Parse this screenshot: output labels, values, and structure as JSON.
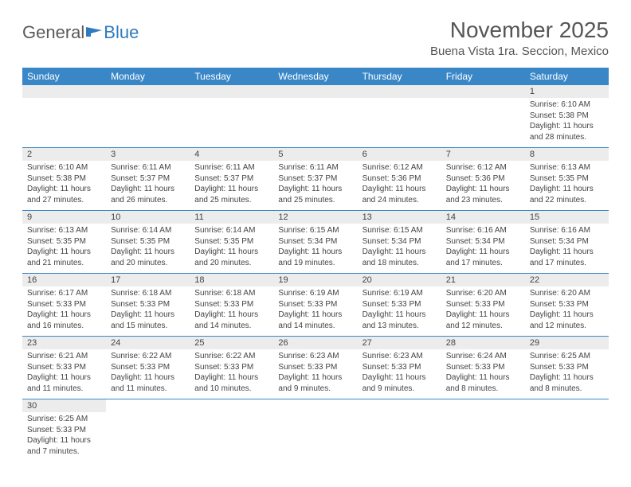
{
  "brand": {
    "part1": "General",
    "part2": "Blue"
  },
  "title": "November 2025",
  "location": "Buena Vista 1ra. Seccion, Mexico",
  "colors": {
    "header_bg": "#3a87c8",
    "header_fg": "#ffffff",
    "daynum_bg": "#ececec",
    "rule": "#3a87c8",
    "text": "#444444",
    "brand_gray": "#5a5a5a",
    "brand_blue": "#2f7bbf"
  },
  "dayHeaders": [
    "Sunday",
    "Monday",
    "Tuesday",
    "Wednesday",
    "Thursday",
    "Friday",
    "Saturday"
  ],
  "weeks": [
    [
      null,
      null,
      null,
      null,
      null,
      null,
      {
        "n": "1",
        "sunrise": "6:10 AM",
        "sunset": "5:38 PM",
        "dl": "11 hours and 28 minutes."
      }
    ],
    [
      {
        "n": "2",
        "sunrise": "6:10 AM",
        "sunset": "5:38 PM",
        "dl": "11 hours and 27 minutes."
      },
      {
        "n": "3",
        "sunrise": "6:11 AM",
        "sunset": "5:37 PM",
        "dl": "11 hours and 26 minutes."
      },
      {
        "n": "4",
        "sunrise": "6:11 AM",
        "sunset": "5:37 PM",
        "dl": "11 hours and 25 minutes."
      },
      {
        "n": "5",
        "sunrise": "6:11 AM",
        "sunset": "5:37 PM",
        "dl": "11 hours and 25 minutes."
      },
      {
        "n": "6",
        "sunrise": "6:12 AM",
        "sunset": "5:36 PM",
        "dl": "11 hours and 24 minutes."
      },
      {
        "n": "7",
        "sunrise": "6:12 AM",
        "sunset": "5:36 PM",
        "dl": "11 hours and 23 minutes."
      },
      {
        "n": "8",
        "sunrise": "6:13 AM",
        "sunset": "5:35 PM",
        "dl": "11 hours and 22 minutes."
      }
    ],
    [
      {
        "n": "9",
        "sunrise": "6:13 AM",
        "sunset": "5:35 PM",
        "dl": "11 hours and 21 minutes."
      },
      {
        "n": "10",
        "sunrise": "6:14 AM",
        "sunset": "5:35 PM",
        "dl": "11 hours and 20 minutes."
      },
      {
        "n": "11",
        "sunrise": "6:14 AM",
        "sunset": "5:35 PM",
        "dl": "11 hours and 20 minutes."
      },
      {
        "n": "12",
        "sunrise": "6:15 AM",
        "sunset": "5:34 PM",
        "dl": "11 hours and 19 minutes."
      },
      {
        "n": "13",
        "sunrise": "6:15 AM",
        "sunset": "5:34 PM",
        "dl": "11 hours and 18 minutes."
      },
      {
        "n": "14",
        "sunrise": "6:16 AM",
        "sunset": "5:34 PM",
        "dl": "11 hours and 17 minutes."
      },
      {
        "n": "15",
        "sunrise": "6:16 AM",
        "sunset": "5:34 PM",
        "dl": "11 hours and 17 minutes."
      }
    ],
    [
      {
        "n": "16",
        "sunrise": "6:17 AM",
        "sunset": "5:33 PM",
        "dl": "11 hours and 16 minutes."
      },
      {
        "n": "17",
        "sunrise": "6:18 AM",
        "sunset": "5:33 PM",
        "dl": "11 hours and 15 minutes."
      },
      {
        "n": "18",
        "sunrise": "6:18 AM",
        "sunset": "5:33 PM",
        "dl": "11 hours and 14 minutes."
      },
      {
        "n": "19",
        "sunrise": "6:19 AM",
        "sunset": "5:33 PM",
        "dl": "11 hours and 14 minutes."
      },
      {
        "n": "20",
        "sunrise": "6:19 AM",
        "sunset": "5:33 PM",
        "dl": "11 hours and 13 minutes."
      },
      {
        "n": "21",
        "sunrise": "6:20 AM",
        "sunset": "5:33 PM",
        "dl": "11 hours and 12 minutes."
      },
      {
        "n": "22",
        "sunrise": "6:20 AM",
        "sunset": "5:33 PM",
        "dl": "11 hours and 12 minutes."
      }
    ],
    [
      {
        "n": "23",
        "sunrise": "6:21 AM",
        "sunset": "5:33 PM",
        "dl": "11 hours and 11 minutes."
      },
      {
        "n": "24",
        "sunrise": "6:22 AM",
        "sunset": "5:33 PM",
        "dl": "11 hours and 11 minutes."
      },
      {
        "n": "25",
        "sunrise": "6:22 AM",
        "sunset": "5:33 PM",
        "dl": "11 hours and 10 minutes."
      },
      {
        "n": "26",
        "sunrise": "6:23 AM",
        "sunset": "5:33 PM",
        "dl": "11 hours and 9 minutes."
      },
      {
        "n": "27",
        "sunrise": "6:23 AM",
        "sunset": "5:33 PM",
        "dl": "11 hours and 9 minutes."
      },
      {
        "n": "28",
        "sunrise": "6:24 AM",
        "sunset": "5:33 PM",
        "dl": "11 hours and 8 minutes."
      },
      {
        "n": "29",
        "sunrise": "6:25 AM",
        "sunset": "5:33 PM",
        "dl": "11 hours and 8 minutes."
      }
    ],
    [
      {
        "n": "30",
        "sunrise": "6:25 AM",
        "sunset": "5:33 PM",
        "dl": "11 hours and 7 minutes."
      },
      null,
      null,
      null,
      null,
      null,
      null
    ]
  ],
  "labels": {
    "sunrise": "Sunrise: ",
    "sunset": "Sunset: ",
    "daylight": "Daylight: "
  }
}
